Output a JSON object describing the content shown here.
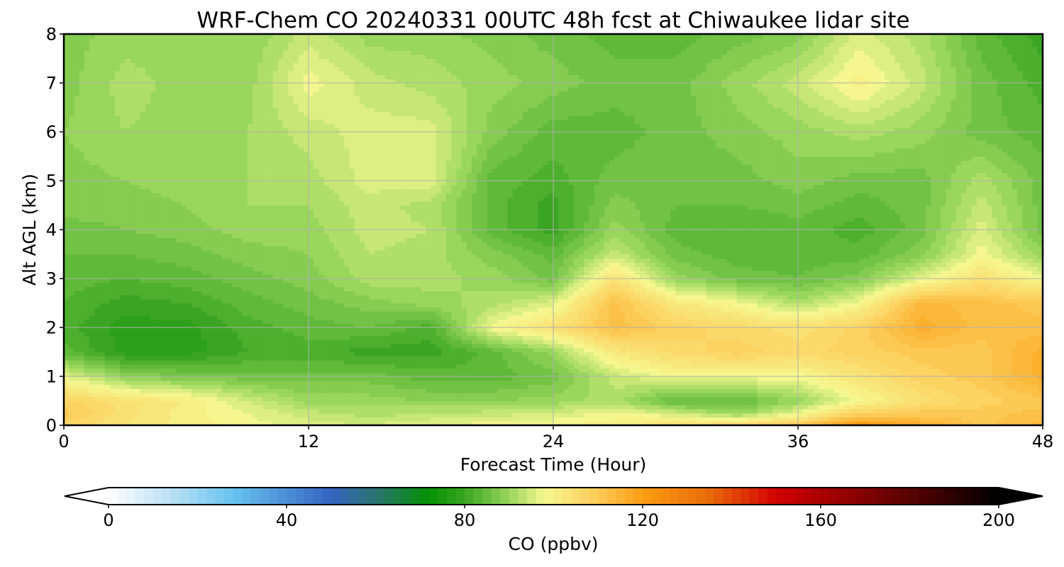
{
  "chart_data": {
    "type": "heatmap",
    "title": "WRF-Chem CO  20240331 00UTC 48h fcst at Chiwaukee lidar site",
    "xlabel": "Forecast Time (Hour)",
    "ylabel": "Alt AGL (km)",
    "xlim": [
      0,
      48
    ],
    "ylim": [
      0,
      8
    ],
    "x_ticks": [
      "0",
      "12",
      "24",
      "36",
      "48"
    ],
    "y_ticks": [
      "0",
      "1",
      "2",
      "3",
      "4",
      "5",
      "6",
      "7",
      "8"
    ],
    "grid": true,
    "x_hours": [
      0,
      3,
      6,
      9,
      12,
      15,
      18,
      21,
      24,
      27,
      30,
      33,
      36,
      39,
      42,
      45,
      48
    ],
    "z_km": [
      0,
      0.25,
      0.5,
      1,
      1.5,
      2,
      2.5,
      3,
      3.5,
      4,
      4.5,
      5,
      6,
      7,
      8
    ],
    "values_ppbv": [
      [
        106,
        103,
        100,
        98,
        96,
        95,
        97,
        98,
        99,
        100,
        104,
        106,
        110,
        122,
        116,
        110,
        114
      ],
      [
        110,
        104,
        100,
        97,
        94,
        92,
        93,
        94,
        95,
        98,
        95,
        90,
        97,
        108,
        110,
        110,
        112
      ],
      [
        108,
        104,
        101,
        95,
        90,
        90,
        89,
        89,
        90,
        92,
        84,
        84,
        90,
        98,
        104,
        108,
        110
      ],
      [
        97,
        89,
        87,
        86,
        86,
        86,
        84,
        84,
        86,
        94,
        98,
        98,
        98,
        103,
        108,
        110,
        116
      ],
      [
        84,
        78,
        78,
        81,
        82,
        80,
        80,
        84,
        90,
        102,
        106,
        108,
        106,
        108,
        110,
        110,
        116
      ],
      [
        82,
        78,
        78,
        82,
        84,
        85,
        82,
        98,
        104,
        112,
        108,
        106,
        104,
        108,
        116,
        112,
        112
      ],
      [
        83,
        80,
        81,
        84,
        86,
        88,
        90,
        92,
        96,
        112,
        102,
        98,
        92,
        98,
        114,
        112,
        110
      ],
      [
        84,
        83,
        84,
        86,
        88,
        92,
        92,
        90,
        86,
        104,
        90,
        86,
        85,
        88,
        96,
        104,
        98
      ],
      [
        85,
        85,
        86,
        88,
        89,
        93,
        92,
        88,
        84,
        94,
        86,
        84,
        84,
        84,
        88,
        98,
        90
      ],
      [
        86,
        87,
        88,
        90,
        90,
        94,
        93,
        84,
        80,
        90,
        84,
        83,
        84,
        82,
        86,
        96,
        86
      ],
      [
        88,
        88,
        89,
        91,
        91,
        94,
        92,
        84,
        80,
        88,
        85,
        85,
        86,
        84,
        86,
        94,
        86
      ],
      [
        88,
        89,
        90,
        91,
        92,
        96,
        96,
        84,
        82,
        86,
        86,
        86,
        88,
        86,
        86,
        92,
        86
      ],
      [
        89,
        91,
        90,
        91,
        94,
        96,
        96,
        88,
        84,
        84,
        86,
        88,
        90,
        92,
        90,
        86,
        84
      ],
      [
        88,
        92,
        90,
        90,
        98,
        94,
        92,
        90,
        88,
        86,
        86,
        90,
        94,
        100,
        94,
        86,
        82
      ],
      [
        88,
        90,
        90,
        89,
        94,
        90,
        90,
        88,
        86,
        84,
        84,
        86,
        88,
        96,
        92,
        84,
        80
      ]
    ],
    "colorbar": {
      "label": "CO  (ppbv)",
      "min": 0,
      "max": 200,
      "ticks": [
        "0",
        "40",
        "80",
        "120",
        "160",
        "200"
      ],
      "extend": "both",
      "color_stops": [
        {
          "value": 0,
          "color": "#ffffff"
        },
        {
          "value": 15,
          "color": "#b5def5"
        },
        {
          "value": 28,
          "color": "#67c3f0"
        },
        {
          "value": 50,
          "color": "#3563c2"
        },
        {
          "value": 60,
          "color": "#2a7470"
        },
        {
          "value": 72,
          "color": "#039102"
        },
        {
          "value": 80,
          "color": "#3aa522"
        },
        {
          "value": 90,
          "color": "#98d65c"
        },
        {
          "value": 98,
          "color": "#f5f78e"
        },
        {
          "value": 108,
          "color": "#fcd261"
        },
        {
          "value": 120,
          "color": "#fb9d13"
        },
        {
          "value": 135,
          "color": "#e96a08"
        },
        {
          "value": 150,
          "color": "#d20202"
        },
        {
          "value": 175,
          "color": "#6e0202"
        },
        {
          "value": 200,
          "color": "#000000"
        }
      ]
    }
  }
}
